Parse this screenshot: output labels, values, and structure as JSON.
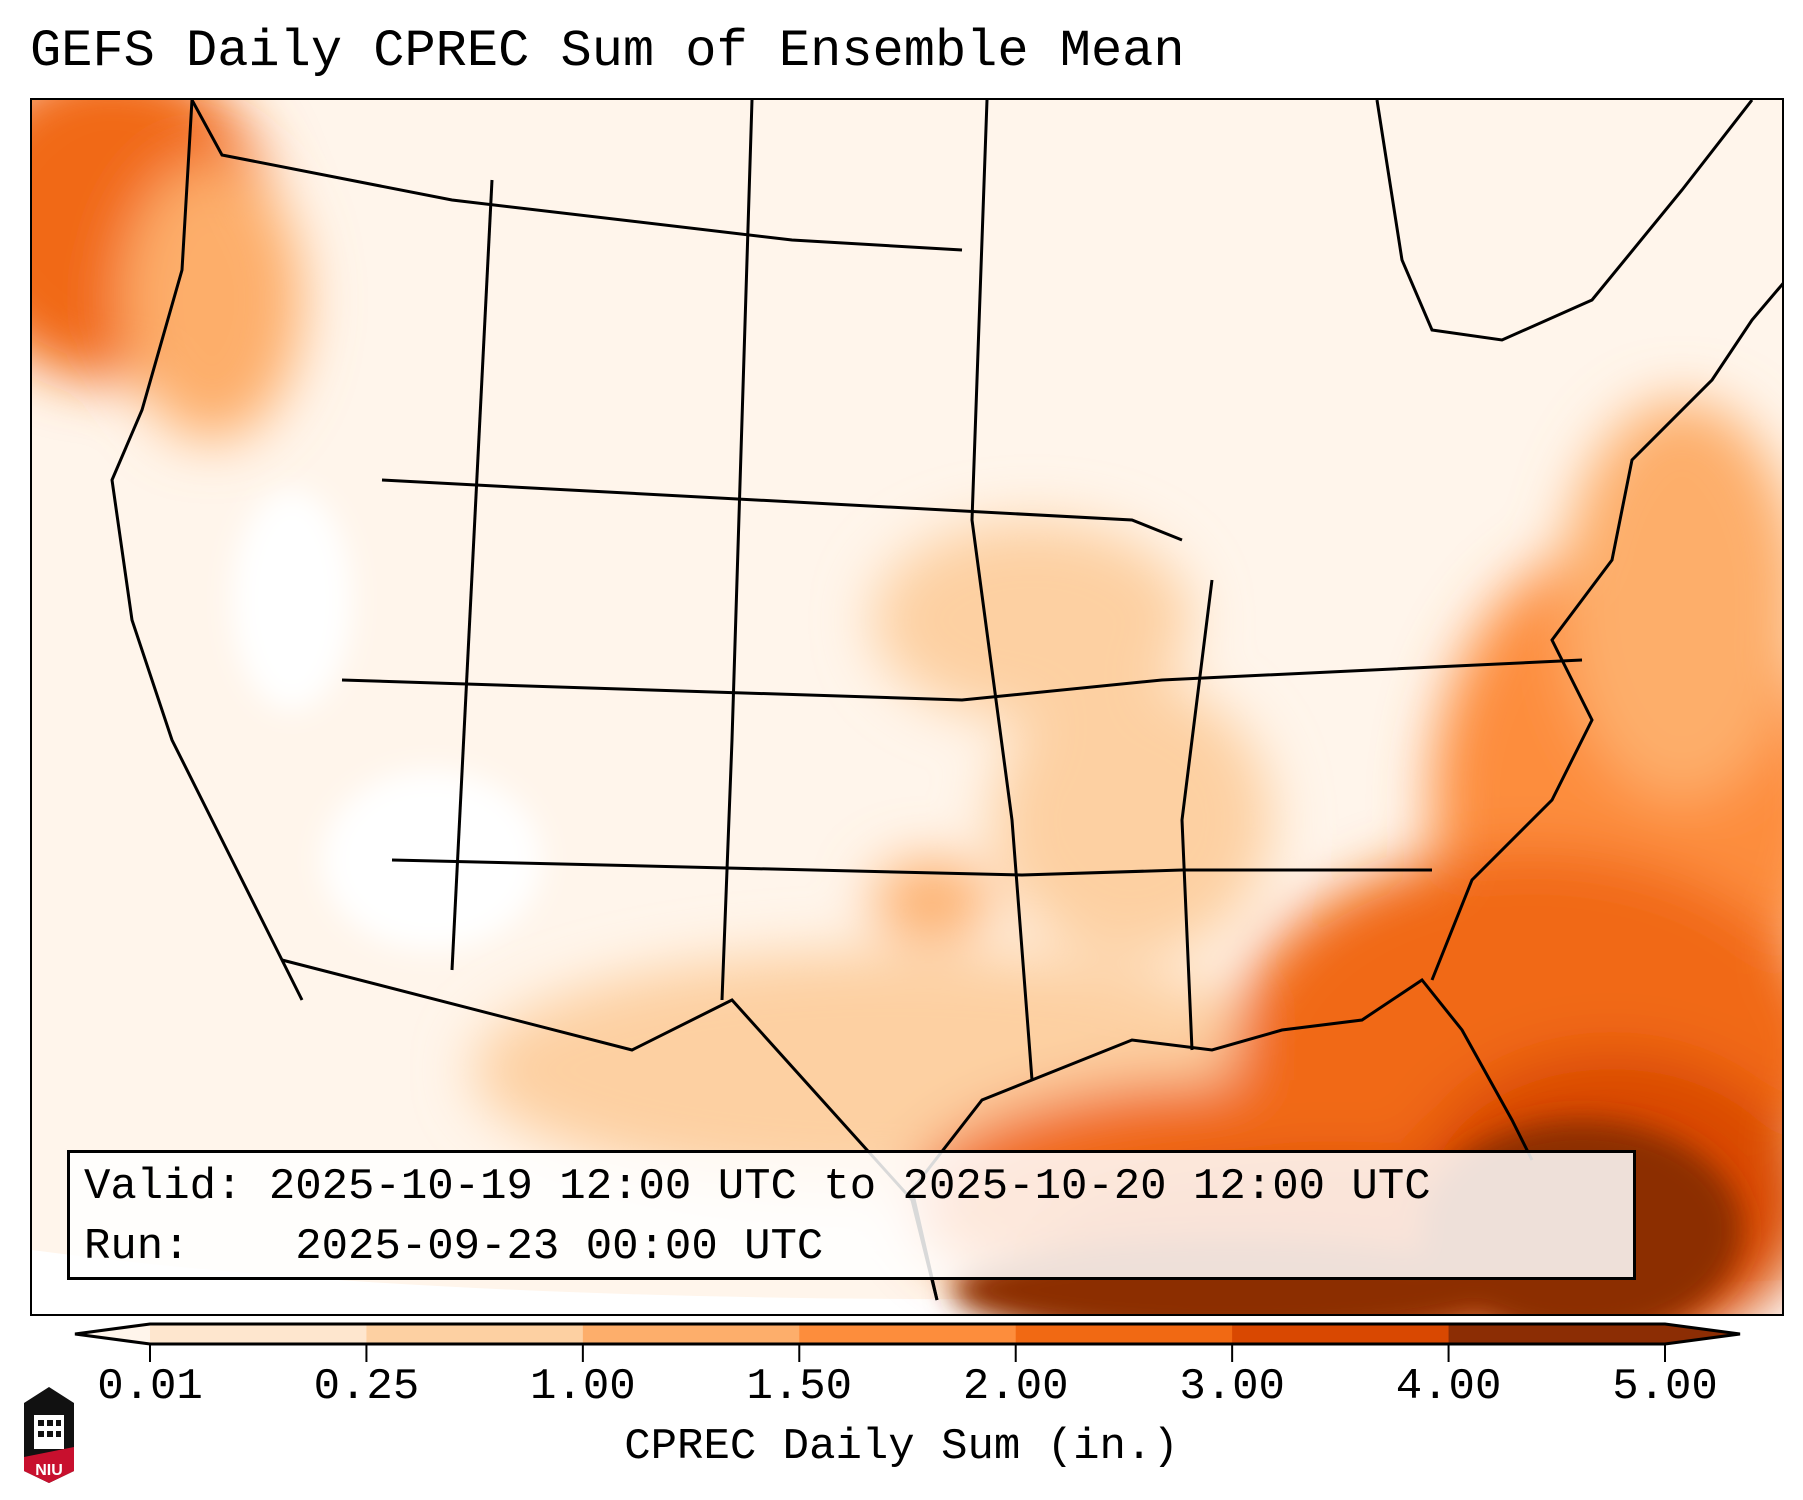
{
  "title": "GEFS Daily CPREC Sum of Ensemble Mean",
  "info": {
    "valid_label": "Valid:",
    "valid_value": "2025-10-19 12:00 UTC to 2025-10-20 12:00 UTC",
    "run_label": "Run:",
    "run_value": "2025-09-23 00:00 UTC"
  },
  "colorbar": {
    "label": "CPREC Daily Sum (in.)",
    "ticks": [
      "0.01",
      "0.25",
      "1.00",
      "1.50",
      "2.00",
      "3.00",
      "4.00",
      "5.00"
    ],
    "colors": [
      "#fff5eb",
      "#fee6ce",
      "#fdd0a2",
      "#fdae6b",
      "#fd8d3c",
      "#f16913",
      "#d94801",
      "#8c2d04"
    ],
    "extend": "both"
  },
  "logo": {
    "text": "NIU"
  }
}
